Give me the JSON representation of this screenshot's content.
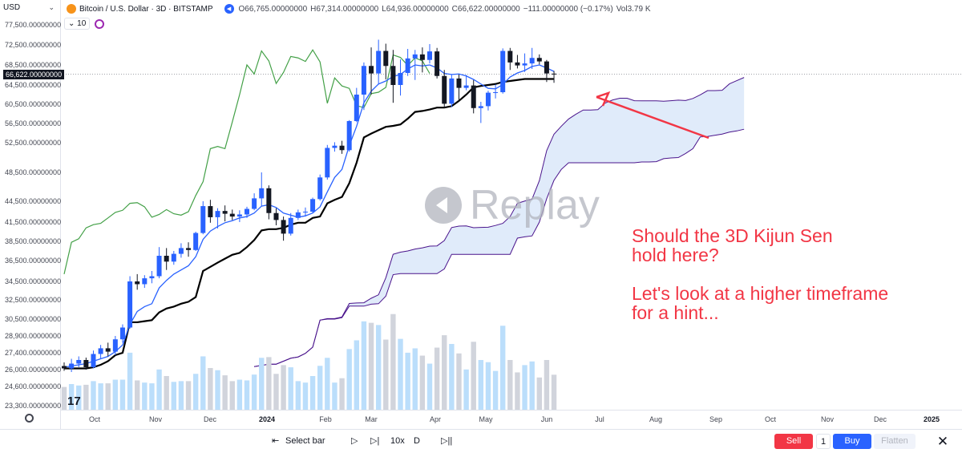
{
  "header": {
    "currency": "USD",
    "symbol": "Bitcoin / U.S. Dollar · 3D · BITSTAMP",
    "open": "O66,765.00000000",
    "high": "H67,314.00000000",
    "low": "L64,936.00000000",
    "close": "C66,622.00000000",
    "change": "−111.00000000 (−0.17%)",
    "volume": "Vol3.79 K",
    "indicator_value": "10"
  },
  "current_price": "66,622.00000000",
  "annotation": {
    "lines": [
      "Should the 3D Kijun Sen",
      "hold here?",
      "",
      "Let's look at a higher timeframe",
      "for a hint..."
    ]
  },
  "watermark": "Replay",
  "logo_text": "17",
  "colors": {
    "up": "#2962ff",
    "down": "#131722",
    "kijun": "#000000",
    "tenkan": "#2962ff",
    "chikou": "#43a047",
    "cloud_line": "#4a148c",
    "cloud_fill": "#dbe8f9",
    "annotation": "#f23645",
    "volume_up": "#bbdefb",
    "volume_down": "#d1d4dc"
  },
  "bottom_bar": {
    "select_bar": "Select bar",
    "speed": "10x",
    "interval": "D",
    "sell": "Sell",
    "quantity": "1",
    "buy": "Buy",
    "flatten": "Flatten"
  },
  "chart_data": {
    "type": "candlestick",
    "title": "Bitcoin / U.S. Dollar · 3D · BITSTAMP",
    "xlabel": "",
    "ylabel": "",
    "y_ticks": [
      "77,500.00000000",
      "72,500.00000000",
      "68,500.00000000",
      "64,500.00000000",
      "60,500.00000000",
      "56,500.00000000",
      "52,500.00000000",
      "48,500.00000000",
      "44,500.00000000",
      "41,500.00000000",
      "38,500.00000000",
      "36,500.00000000",
      "34,500.00000000",
      "32,500.00000000",
      "30,500.00000000",
      "28,900.00000000",
      "27,400.00000000",
      "26,000.00000000",
      "24,600.00000000",
      "23,300.00000000"
    ],
    "x_ticks": [
      "Oct",
      "Nov",
      "Dec",
      "2024",
      "Feb",
      "Mar",
      "Apr",
      "May",
      "Jun",
      "Jul",
      "Aug",
      "Sep",
      "Oct",
      "Nov",
      "Dec",
      "2025"
    ],
    "ylim": [
      23000,
      79000
    ],
    "candles": [
      {
        "o": 26300,
        "h": 26600,
        "l": 25900,
        "c": 26100
      },
      {
        "o": 26100,
        "h": 26900,
        "l": 25800,
        "c": 26500
      },
      {
        "o": 26500,
        "h": 27100,
        "l": 26200,
        "c": 26800
      },
      {
        "o": 26800,
        "h": 27000,
        "l": 26000,
        "c": 26200
      },
      {
        "o": 26200,
        "h": 27600,
        "l": 26100,
        "c": 27300
      },
      {
        "o": 27300,
        "h": 28100,
        "l": 26900,
        "c": 27800
      },
      {
        "o": 27800,
        "h": 28300,
        "l": 27100,
        "c": 27500
      },
      {
        "o": 27500,
        "h": 28900,
        "l": 27200,
        "c": 28600
      },
      {
        "o": 28600,
        "h": 30000,
        "l": 28300,
        "c": 29700
      },
      {
        "o": 29700,
        "h": 35000,
        "l": 29600,
        "c": 34500
      },
      {
        "o": 34500,
        "h": 35200,
        "l": 33600,
        "c": 34200
      },
      {
        "o": 34200,
        "h": 35100,
        "l": 33800,
        "c": 34800
      },
      {
        "o": 34800,
        "h": 35500,
        "l": 34300,
        "c": 35000
      },
      {
        "o": 35000,
        "h": 37900,
        "l": 34800,
        "c": 37000
      },
      {
        "o": 37000,
        "h": 37800,
        "l": 35600,
        "c": 36400
      },
      {
        "o": 36400,
        "h": 37500,
        "l": 36100,
        "c": 37200
      },
      {
        "o": 37200,
        "h": 38300,
        "l": 36800,
        "c": 37800
      },
      {
        "o": 37800,
        "h": 38400,
        "l": 36900,
        "c": 37600
      },
      {
        "o": 37600,
        "h": 40000,
        "l": 37500,
        "c": 39800
      },
      {
        "o": 39800,
        "h": 44500,
        "l": 39600,
        "c": 43800
      },
      {
        "o": 43800,
        "h": 44700,
        "l": 41400,
        "c": 42200
      },
      {
        "o": 42200,
        "h": 43500,
        "l": 40500,
        "c": 43100
      },
      {
        "o": 43100,
        "h": 43900,
        "l": 41600,
        "c": 42700
      },
      {
        "o": 42700,
        "h": 43300,
        "l": 41800,
        "c": 42300
      },
      {
        "o": 42300,
        "h": 43200,
        "l": 41500,
        "c": 42600
      },
      {
        "o": 42600,
        "h": 43700,
        "l": 42100,
        "c": 43400
      },
      {
        "o": 43400,
        "h": 45600,
        "l": 43200,
        "c": 44900
      },
      {
        "o": 44900,
        "h": 48500,
        "l": 43800,
        "c": 46300
      },
      {
        "o": 46300,
        "h": 46700,
        "l": 41900,
        "c": 42800
      },
      {
        "o": 42800,
        "h": 43500,
        "l": 41000,
        "c": 41800
      },
      {
        "o": 41800,
        "h": 42300,
        "l": 38600,
        "c": 39700
      },
      {
        "o": 39700,
        "h": 42800,
        "l": 39400,
        "c": 42100
      },
      {
        "o": 42100,
        "h": 43300,
        "l": 41800,
        "c": 42900
      },
      {
        "o": 42900,
        "h": 43600,
        "l": 42300,
        "c": 43000
      },
      {
        "o": 43000,
        "h": 45000,
        "l": 42800,
        "c": 44800
      },
      {
        "o": 44800,
        "h": 48200,
        "l": 44600,
        "c": 47800
      },
      {
        "o": 47800,
        "h": 52200,
        "l": 47500,
        "c": 51800
      },
      {
        "o": 51800,
        "h": 52600,
        "l": 51300,
        "c": 52100
      },
      {
        "o": 52100,
        "h": 52900,
        "l": 51000,
        "c": 51500
      },
      {
        "o": 51500,
        "h": 57200,
        "l": 51300,
        "c": 57000
      },
      {
        "o": 57000,
        "h": 63900,
        "l": 56800,
        "c": 62500
      },
      {
        "o": 62500,
        "h": 69000,
        "l": 59300,
        "c": 68300
      },
      {
        "o": 68300,
        "h": 72000,
        "l": 62500,
        "c": 66800
      },
      {
        "o": 66800,
        "h": 73800,
        "l": 64600,
        "c": 71300
      },
      {
        "o": 71300,
        "h": 72800,
        "l": 65600,
        "c": 68300
      },
      {
        "o": 68300,
        "h": 71500,
        "l": 60800,
        "c": 64500
      },
      {
        "o": 64500,
        "h": 69600,
        "l": 62300,
        "c": 66900
      },
      {
        "o": 66900,
        "h": 71700,
        "l": 66300,
        "c": 69800
      },
      {
        "o": 69800,
        "h": 71500,
        "l": 65500,
        "c": 70600
      },
      {
        "o": 70600,
        "h": 72000,
        "l": 67000,
        "c": 69500
      },
      {
        "o": 69500,
        "h": 72700,
        "l": 68800,
        "c": 71200
      },
      {
        "o": 71200,
        "h": 71900,
        "l": 65800,
        "c": 66300
      },
      {
        "o": 66300,
        "h": 67500,
        "l": 59700,
        "c": 60600
      },
      {
        "o": 60600,
        "h": 66500,
        "l": 59900,
        "c": 65800
      },
      {
        "o": 65800,
        "h": 66600,
        "l": 61300,
        "c": 63900
      },
      {
        "o": 63900,
        "h": 66500,
        "l": 63400,
        "c": 64400
      },
      {
        "o": 64400,
        "h": 65500,
        "l": 58600,
        "c": 59700
      },
      {
        "o": 59700,
        "h": 61000,
        "l": 56600,
        "c": 60100
      },
      {
        "o": 60100,
        "h": 63300,
        "l": 59200,
        "c": 62900
      },
      {
        "o": 62900,
        "h": 64600,
        "l": 61700,
        "c": 63000
      },
      {
        "o": 63000,
        "h": 71800,
        "l": 62700,
        "c": 71300
      },
      {
        "o": 71300,
        "h": 71900,
        "l": 67500,
        "c": 69000
      },
      {
        "o": 69000,
        "h": 70500,
        "l": 67800,
        "c": 68400
      },
      {
        "o": 68400,
        "h": 70800,
        "l": 67100,
        "c": 68800
      },
      {
        "o": 68800,
        "h": 71900,
        "l": 67700,
        "c": 69900
      },
      {
        "o": 69900,
        "h": 70600,
        "l": 68600,
        "c": 69200
      },
      {
        "o": 69200,
        "h": 69500,
        "l": 65100,
        "c": 66800
      },
      {
        "o": 66765,
        "h": 67314,
        "l": 64936,
        "c": 66622
      }
    ],
    "kijun_sen": [
      26100,
      26100,
      26100,
      26100,
      26200,
      26400,
      26700,
      27200,
      27400,
      30200,
      30200,
      30300,
      30400,
      31200,
      31600,
      31800,
      32100,
      32300,
      32800,
      35500,
      35900,
      36300,
      36700,
      37100,
      37300,
      37900,
      38700,
      40200,
      40400,
      40400,
      40600,
      41100,
      41400,
      41400,
      42100,
      42300,
      44200,
      44700,
      45100,
      47000,
      49800,
      53600,
      54400,
      55100,
      55800,
      56000,
      56300,
      57500,
      58900,
      59100,
      59400,
      59800,
      59800,
      60100,
      61200,
      62500,
      64000,
      64300,
      64500,
      64700,
      65100,
      65300,
      65500,
      65700,
      65700,
      65700,
      65700,
      65700
    ],
    "tenkan_sen": [
      26200,
      26300,
      26400,
      26500,
      26700,
      26900,
      27100,
      27500,
      28100,
      30000,
      31300,
      31800,
      32100,
      33800,
      34600,
      35200,
      35600,
      36000,
      36900,
      38800,
      40100,
      40800,
      41400,
      41700,
      42100,
      42300,
      42800,
      43800,
      44000,
      43600,
      42800,
      42500,
      42200,
      42400,
      42800,
      43700,
      45800,
      47800,
      48900,
      52100,
      55900,
      60800,
      63200,
      64700,
      65300,
      66200,
      66600,
      67700,
      68500,
      68300,
      68500,
      67900,
      66800,
      66600,
      66700,
      66300,
      65600,
      64700,
      63800,
      63700,
      64600,
      66100,
      66900,
      67400,
      68200,
      68500,
      67900,
      67200
    ],
    "chikou_span": [
      35200,
      38400,
      38900,
      40600,
      41100,
      41300,
      42100,
      42900,
      43200,
      44200,
      44300,
      43700,
      42200,
      42600,
      43300,
      42700,
      42500,
      43000,
      45300,
      47200,
      51700,
      52000,
      51700,
      56800,
      62500,
      68500,
      66700,
      71300,
      69300,
      64800,
      67000,
      70200,
      69900,
      69200,
      71500,
      69100,
      60700,
      65900,
      64300,
      63800,
      60200,
      59800,
      62700,
      63000,
      64000,
      70500,
      70000,
      68400,
      69900,
      69300,
      66800
    ]
  }
}
